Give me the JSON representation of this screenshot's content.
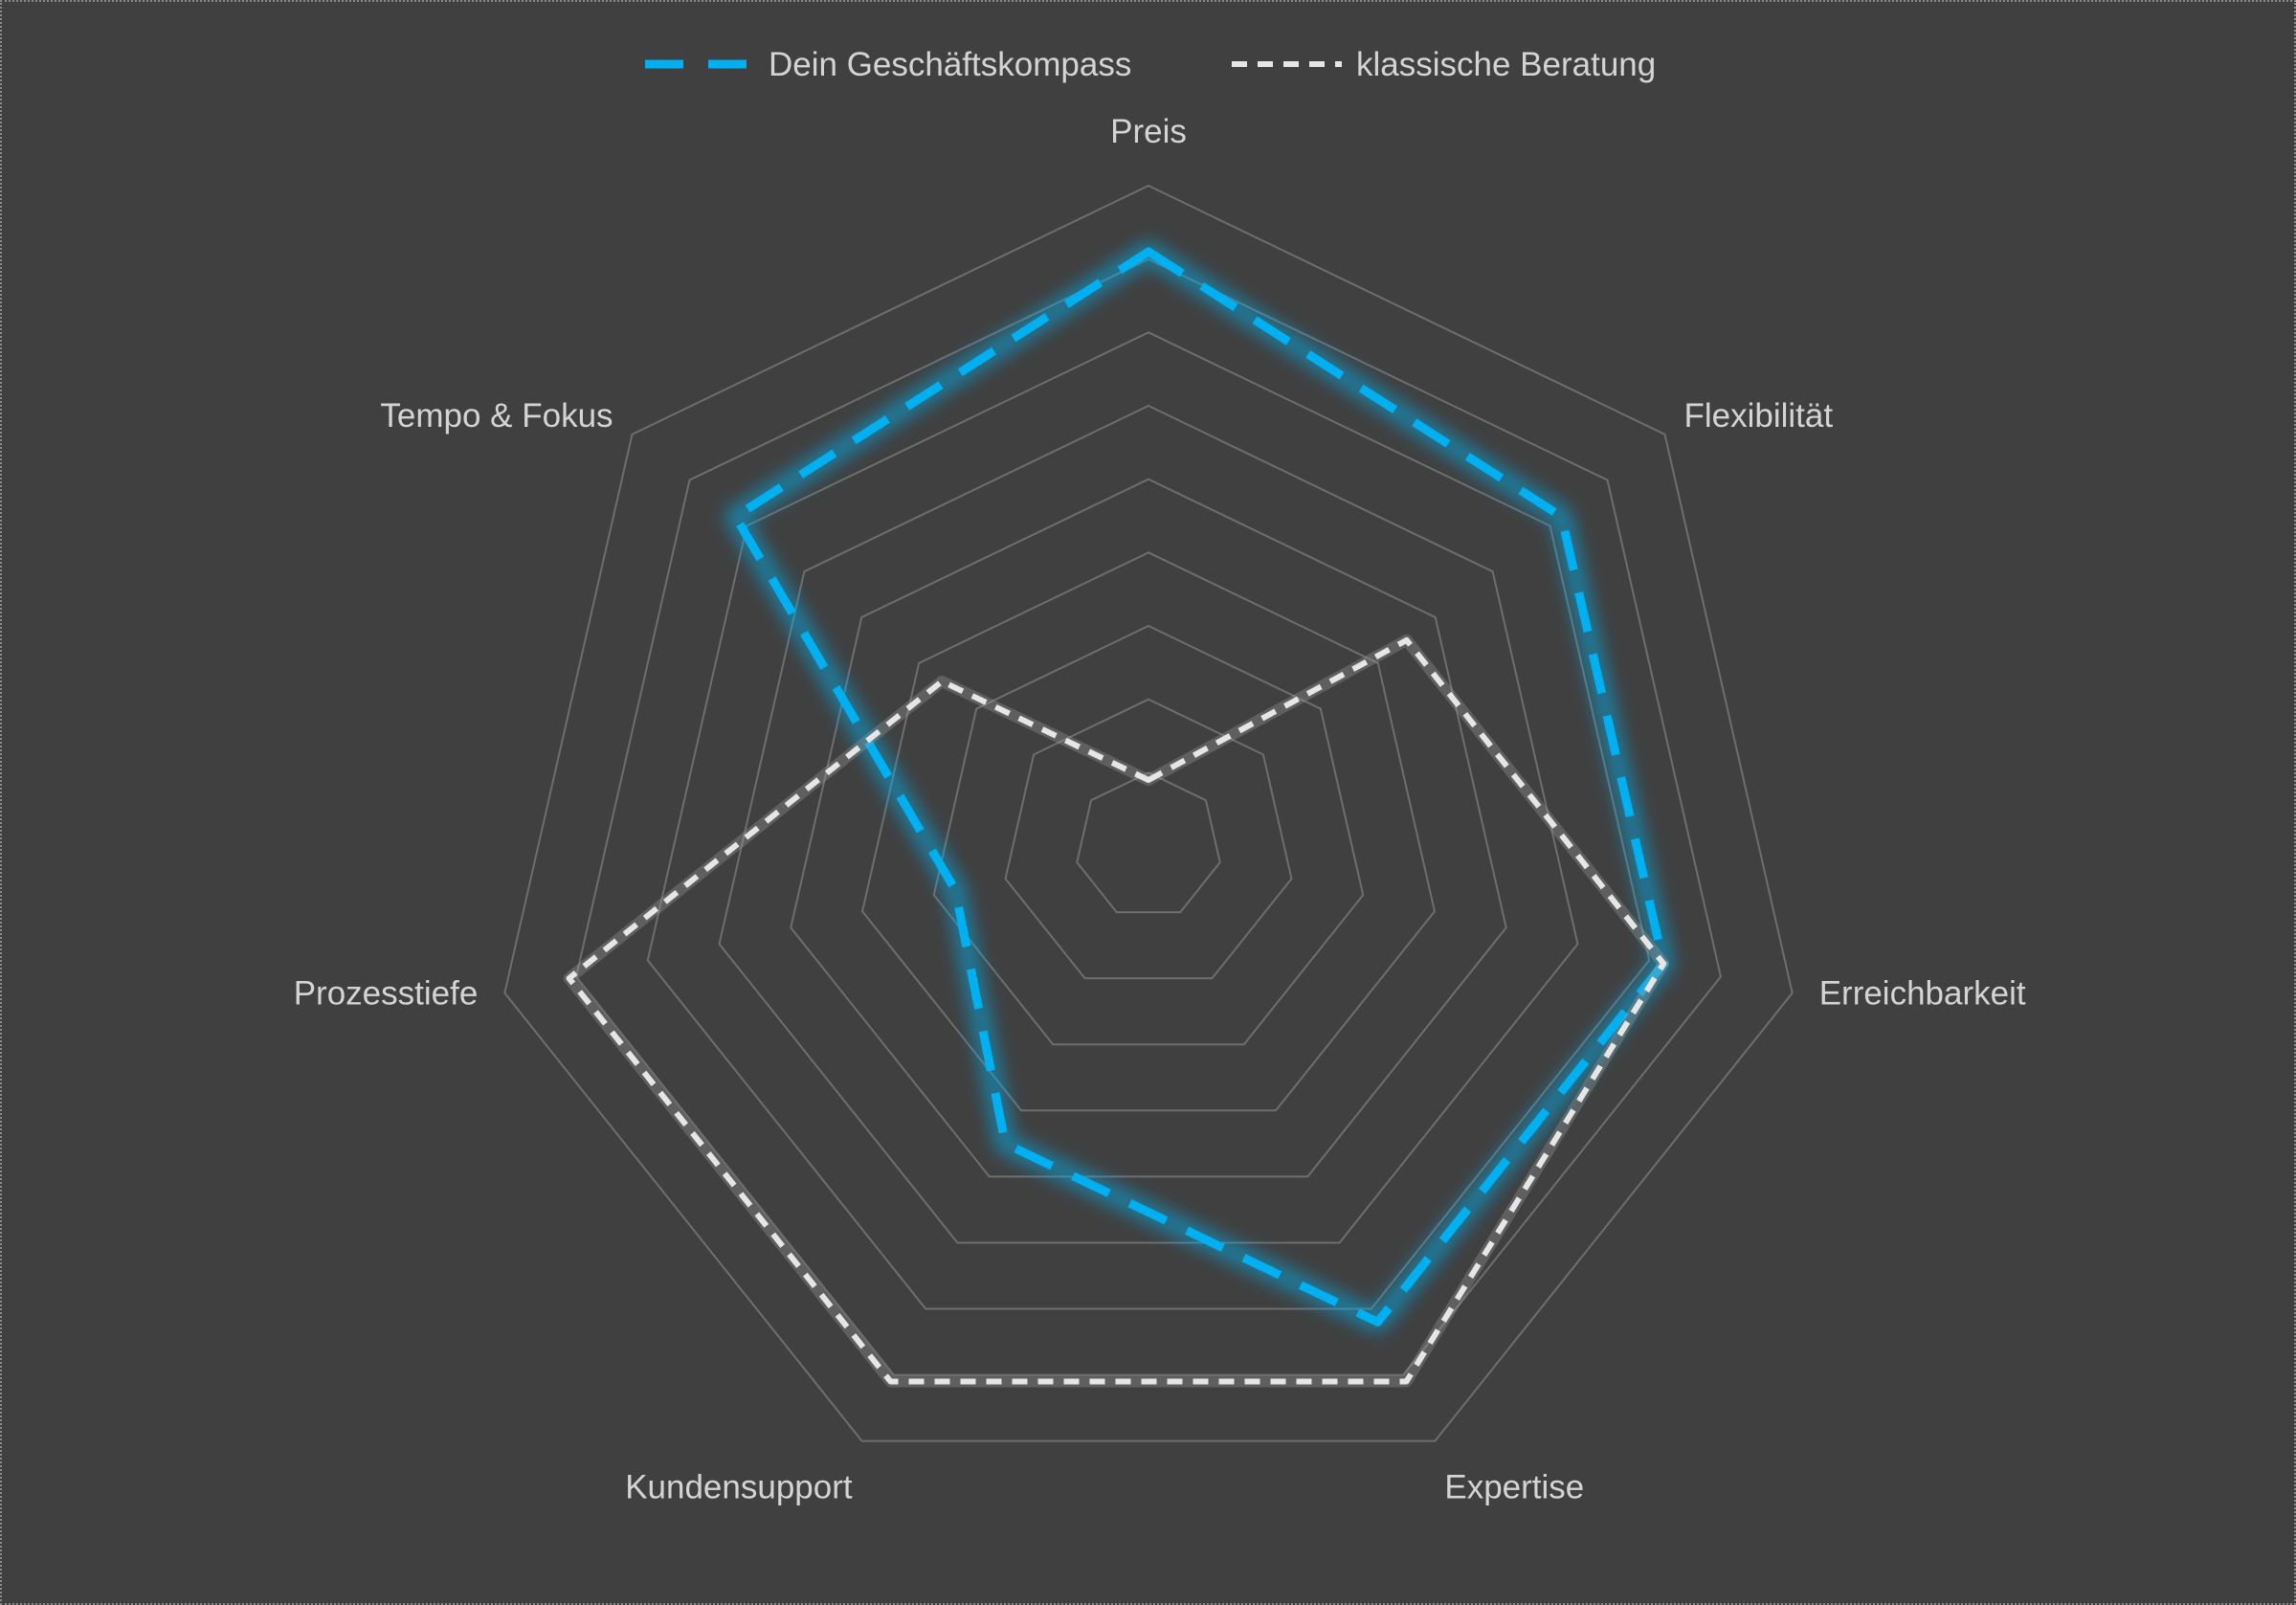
{
  "chart_data": {
    "type": "radar",
    "title": "",
    "axes": [
      "Preis",
      "Flexibilität",
      "Erreichbarkeit",
      "Expertise",
      "Kundensupport",
      "Prozesstiefe",
      "Tempo & Fokus"
    ],
    "range": [
      0,
      10
    ],
    "grid_levels": 9,
    "grid": true,
    "legend_position": "top",
    "series": [
      {
        "name": "Dein Geschäftskompass",
        "values": [
          9,
          8,
          8,
          8,
          5,
          3,
          8
        ],
        "color": "#00b0f0",
        "line_style": "long-dash",
        "glow": true
      },
      {
        "name": "klassische Beratung",
        "values": [
          1,
          5,
          8,
          9,
          9,
          9,
          4
        ],
        "color": "#e6e6e6",
        "line_style": "short-dash",
        "glow": false
      }
    ]
  }
}
